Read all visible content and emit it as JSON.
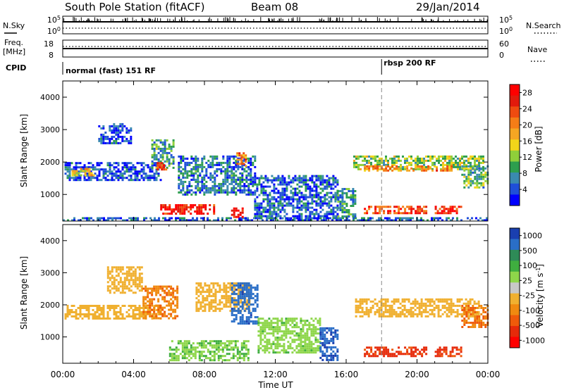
{
  "header": {
    "station": "South Pole Station (fitACF)",
    "beam": "Beam 08",
    "date": "29/Jan/2014"
  },
  "top_panels": {
    "nsky_label": "N.Sky",
    "nsearch_label": "N.Search",
    "nsky_ticks": [
      "10^5",
      "10^0"
    ],
    "nsearch_ticks": [
      "10^5",
      "10^0"
    ],
    "freq_label": "Freq.",
    "freq_unit": "[MHz]",
    "freq_ticks": [
      "18",
      "8"
    ],
    "nave_label": "Nave",
    "nave_ticks": [
      "60",
      "0"
    ],
    "cpid_label": "CPID",
    "cpid_modes": [
      "normal (fast) 151 RF",
      "rbsp 200 RF"
    ],
    "mode_change_time_h": 18.0
  },
  "chart_data": [
    {
      "type": "heatmap",
      "panel": "power",
      "ylabel": "Slant Range [km]",
      "ylim": [
        180,
        4500
      ],
      "yticks": [
        "1000",
        "2000",
        "3000",
        "4000"
      ],
      "xlim_h": [
        0,
        24
      ],
      "xticks": [
        "00:00",
        "04:00",
        "08:00",
        "12:00",
        "16:00",
        "20:00",
        "00:00"
      ],
      "colorbar": {
        "label": "Power [dB]",
        "ticks": [
          "4",
          "8",
          "12",
          "16",
          "20",
          "24",
          "28"
        ],
        "colors": [
          "#0000ff",
          "#1f4fd8",
          "#3a8ab0",
          "#2e9e4e",
          "#8fcf3a",
          "#f2d51a",
          "#f5a623",
          "#f57d17",
          "#ef4b10",
          "#e21a0c",
          "#ff0000"
        ]
      },
      "regions": [
        {
          "t0": 0.0,
          "t1": 24.0,
          "r0": 200,
          "r1": 300,
          "v": 5
        },
        {
          "t0": 0.1,
          "t1": 5.5,
          "r0": 1450,
          "r1": 2000,
          "v": 4
        },
        {
          "t0": 0.5,
          "t1": 1.8,
          "r0": 1620,
          "r1": 1820,
          "v": 16
        },
        {
          "t0": 2.0,
          "t1": 3.8,
          "r0": 2600,
          "r1": 3200,
          "v": 4
        },
        {
          "t0": 5.0,
          "t1": 6.2,
          "r0": 1800,
          "r1": 2700,
          "v": 9
        },
        {
          "t0": 5.3,
          "t1": 5.8,
          "r0": 1800,
          "r1": 2000,
          "v": 24
        },
        {
          "t0": 5.5,
          "t1": 8.5,
          "r0": 400,
          "r1": 700,
          "v": 26
        },
        {
          "t0": 6.5,
          "t1": 10.8,
          "r0": 1000,
          "r1": 2200,
          "v": 6
        },
        {
          "t0": 9.5,
          "t1": 10.2,
          "r0": 300,
          "r1": 600,
          "v": 28
        },
        {
          "t0": 9.8,
          "t1": 10.3,
          "r0": 1900,
          "r1": 2300,
          "v": 20
        },
        {
          "t0": 10.8,
          "t1": 15.5,
          "r0": 250,
          "r1": 1600,
          "v": 5
        },
        {
          "t0": 15.5,
          "t1": 16.5,
          "r0": 300,
          "r1": 1200,
          "v": 8
        },
        {
          "t0": 16.4,
          "t1": 23.8,
          "r0": 1800,
          "r1": 2200,
          "v": 12
        },
        {
          "t0": 17.0,
          "t1": 22.0,
          "r0": 1750,
          "r1": 1900,
          "v": 20
        },
        {
          "t0": 17.0,
          "t1": 20.5,
          "r0": 400,
          "r1": 650,
          "v": 24
        },
        {
          "t0": 21.0,
          "t1": 22.5,
          "r0": 400,
          "r1": 650,
          "v": 26
        },
        {
          "t0": 22.5,
          "t1": 24.0,
          "r0": 1200,
          "r1": 1900,
          "v": 10
        }
      ]
    },
    {
      "type": "heatmap",
      "panel": "velocity",
      "ylabel": "Slant Range [km]",
      "ylim": [
        180,
        4500
      ],
      "yticks": [
        "1000",
        "2000",
        "3000",
        "4000"
      ],
      "xlim_h": [
        0,
        24
      ],
      "xticks": [
        "00:00",
        "04:00",
        "08:00",
        "12:00",
        "16:00",
        "20:00",
        "00:00"
      ],
      "colorbar": {
        "label": "Velocity [m s^-1]",
        "ticks": [
          "1000",
          "500",
          "100",
          "25",
          "-25",
          "-100",
          "-500",
          "-1000"
        ],
        "colors": [
          "#1a3fb0",
          "#2a6ec7",
          "#2e8b57",
          "#3fae3f",
          "#8ed64a",
          "#c8c8c8",
          "#f0b030",
          "#f08a10",
          "#ef5a0a",
          "#e62a0a",
          "#ff0000"
        ]
      },
      "regions": [
        {
          "t0": 0.1,
          "t1": 5.5,
          "r0": 1550,
          "r1": 2000,
          "v": 0
        },
        {
          "t0": 2.5,
          "t1": 4.5,
          "r0": 2400,
          "r1": 3200,
          "v": 0
        },
        {
          "t0": 4.5,
          "t1": 6.5,
          "r0": 1600,
          "r1": 2600,
          "v": -90
        },
        {
          "t0": 6.0,
          "t1": 10.5,
          "r0": 300,
          "r1": 900,
          "v": 90
        },
        {
          "t0": 7.5,
          "t1": 10.5,
          "r0": 1800,
          "r1": 2700,
          "v": 0
        },
        {
          "t0": 9.5,
          "t1": 11.0,
          "r0": 1400,
          "r1": 2700,
          "v": 800
        },
        {
          "t0": 11.0,
          "t1": 14.5,
          "r0": 500,
          "r1": 1600,
          "v": 80
        },
        {
          "t0": 14.5,
          "t1": 15.5,
          "r0": 300,
          "r1": 1300,
          "v": 900
        },
        {
          "t0": 16.5,
          "t1": 23.5,
          "r0": 1650,
          "r1": 2200,
          "v": 0
        },
        {
          "t0": 17.0,
          "t1": 20.5,
          "r0": 400,
          "r1": 700,
          "v": -300
        },
        {
          "t0": 21.0,
          "t1": 22.5,
          "r0": 400,
          "r1": 700,
          "v": -300
        },
        {
          "t0": 22.5,
          "t1": 24.0,
          "r0": 1300,
          "r1": 2000,
          "v": -100
        }
      ]
    }
  ],
  "xlabel": "Time UT"
}
